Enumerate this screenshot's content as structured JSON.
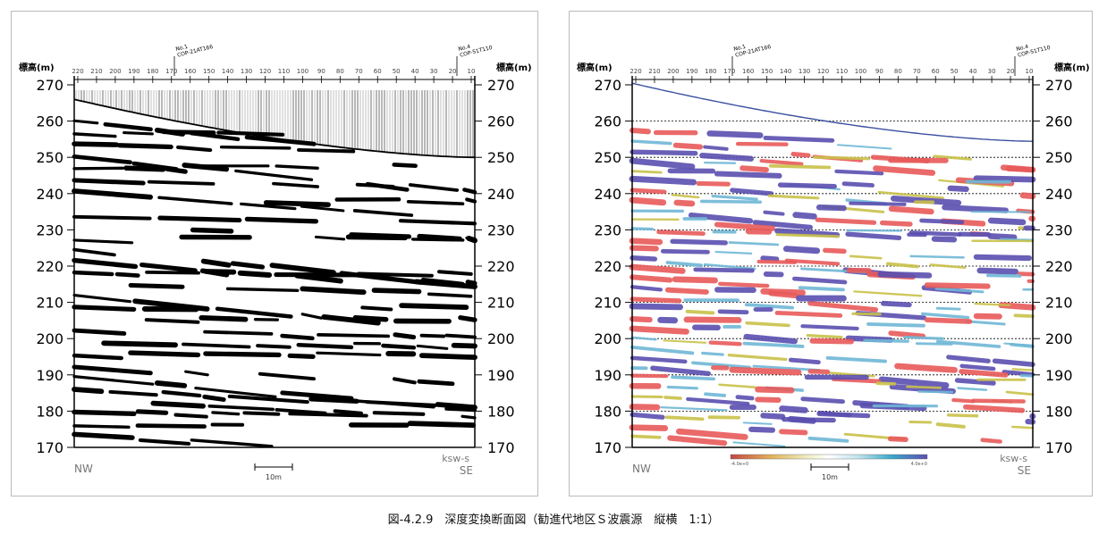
{
  "figure": {
    "caption": "図-4.2.9　深度変換断面図（勧進代地区Ｓ波震源　縦横　1:1）"
  },
  "sections": [
    {
      "id": "left",
      "elev_label_left": "標高(m)",
      "elev_label_right": "標高(m)",
      "top_distances": [
        "220",
        "210",
        "200",
        "190",
        "180",
        "170",
        "160",
        "150",
        "140",
        "130",
        "120",
        "110",
        "100",
        "90",
        "80",
        "70",
        "60",
        "50",
        "40",
        "30",
        "20",
        "10"
      ],
      "elevation_ticks": [
        "270",
        "260",
        "250",
        "240",
        "230",
        "220",
        "210",
        "200",
        "190",
        "180",
        "170"
      ],
      "marker_1": "No.1\nCOP-21AT166",
      "marker_2": "No.4\nCOP-51T110",
      "bottom_left_dir": "NW",
      "bottom_right_dir": "SE",
      "line_label": "ksw-s",
      "scale_label": "10m"
    },
    {
      "id": "right",
      "elev_label_left": "標高(m)",
      "elev_label_right": "標高(m)",
      "top_distances": [
        "220",
        "210",
        "200",
        "190",
        "180",
        "170",
        "160",
        "150",
        "140",
        "130",
        "120",
        "110",
        "100",
        "90",
        "80",
        "70",
        "60",
        "50",
        "40",
        "30",
        "20",
        "10"
      ],
      "elevation_ticks": [
        "270",
        "260",
        "250",
        "240",
        "230",
        "220",
        "210",
        "200",
        "190",
        "180",
        "170"
      ],
      "marker_1": "No.1\nCOP-21AT166",
      "marker_2": "No.4\nCOP-51T110",
      "bottom_left_dir": "NW",
      "bottom_right_dir": "SE",
      "line_label": "ksw-s",
      "scale_label": "10m",
      "colorbar_min": "-4.0e+0",
      "colorbar_max": "4.0e+0"
    }
  ],
  "colors": {
    "trough": "#e85a5a",
    "peak": "#5a4fb0",
    "surface_line": "#3a4fa0",
    "seismic_black": "#000000"
  }
}
